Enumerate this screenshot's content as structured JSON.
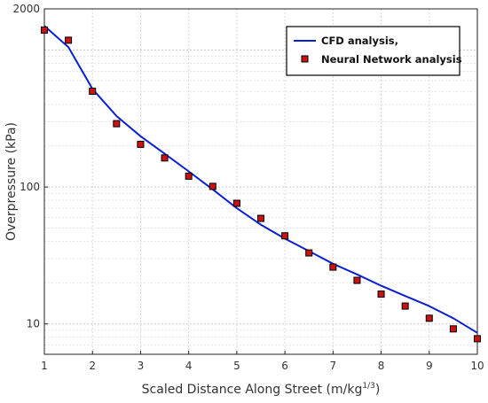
{
  "chart_data": {
    "type": "line",
    "title": "",
    "xlabel": "Scaled Distance Along Street (m/kg",
    "xlabel_sup": "1/3",
    "xlabel_close": ")",
    "ylabel": "Overpressure (kPa)",
    "xlim": [
      1,
      10
    ],
    "ylim": [
      6,
      2000
    ],
    "yscale": "log",
    "grid": true,
    "legend_position": "top-right",
    "x_ticks": [
      1,
      2,
      3,
      4,
      5,
      6,
      7,
      8,
      9,
      10
    ],
    "y_tick_labels": [
      {
        "value": 2000,
        "label": "2000"
      },
      {
        "value": 100,
        "label": "100"
      },
      {
        "value": 10,
        "label": "10"
      }
    ],
    "series": [
      {
        "name": "CFD analysis,",
        "kind": "line",
        "color": "#0a1fd4",
        "x": [
          1,
          1.5,
          2,
          2.5,
          3,
          3.5,
          4,
          4.5,
          5,
          5.5,
          6,
          6.5,
          7,
          7.5,
          8,
          8.5,
          9,
          9.5,
          10
        ],
        "y": [
          1500,
          1050,
          520,
          330,
          235,
          175,
          130,
          96,
          70,
          53,
          42,
          34,
          27.5,
          23,
          19,
          16,
          13.5,
          11,
          8.6
        ]
      },
      {
        "name": "Neural Network analysis",
        "kind": "marker",
        "color": "#cc1111",
        "x": [
          1,
          1.5,
          2,
          2.5,
          3,
          3.5,
          4,
          4.5,
          5,
          5.5,
          6,
          6.5,
          7,
          7.5,
          8,
          8.5,
          9,
          9.5,
          10
        ],
        "y": [
          1400,
          1180,
          500,
          290,
          205,
          163,
          120,
          101,
          76,
          59,
          44,
          33,
          26,
          20.8,
          16.5,
          13.5,
          11,
          9.2,
          7.8
        ]
      }
    ]
  }
}
